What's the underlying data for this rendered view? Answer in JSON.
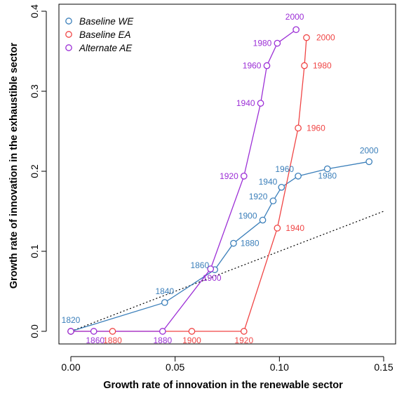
{
  "chart_data": {
    "type": "line",
    "xlabel": "Growth rate of innovation in the renewable sector",
    "ylabel": "Growth rate of innovation in the exhaustible sector",
    "xlim": [
      0,
      0.15
    ],
    "ylim": [
      0,
      0.4
    ],
    "x_ticks": [
      0,
      0.05,
      0.1,
      0.15
    ],
    "x_tick_labels": [
      "0.00",
      "0.05",
      "0.10",
      "0.15"
    ],
    "y_ticks": [
      0,
      0.1,
      0.2,
      0.3,
      0.4
    ],
    "y_tick_labels": [
      "0.0",
      "0.1",
      "0.2",
      "0.3",
      "0.4"
    ],
    "grid": false,
    "legend_position": "top-left",
    "reference_line": {
      "style": "dotted",
      "color": "#000000",
      "x": [
        0,
        0.15
      ],
      "y": [
        0,
        0.15
      ]
    },
    "series": [
      {
        "name": "Baseline WE",
        "color": "#3b7fba",
        "points": [
          {
            "x": 0.0,
            "y": 0.0,
            "label": "1820"
          },
          {
            "x": 0.045,
            "y": 0.036,
            "label": "1840"
          },
          {
            "x": 0.069,
            "y": 0.077,
            "label": "1860"
          },
          {
            "x": 0.078,
            "y": 0.11,
            "label": "1880"
          },
          {
            "x": 0.092,
            "y": 0.139,
            "label": "1900"
          },
          {
            "x": 0.097,
            "y": 0.163,
            "label": "1920"
          },
          {
            "x": 0.101,
            "y": 0.18,
            "label": "1940"
          },
          {
            "x": 0.109,
            "y": 0.194,
            "label": "1960"
          },
          {
            "x": 0.123,
            "y": 0.203,
            "label": "1980"
          },
          {
            "x": 0.143,
            "y": 0.212,
            "label": "2000"
          }
        ]
      },
      {
        "name": "Baseline EA",
        "color": "#f04545",
        "points": [
          {
            "x": 0.0,
            "y": 0.0,
            "label": ""
          },
          {
            "x": 0.02,
            "y": 0.0,
            "label": "1880"
          },
          {
            "x": 0.058,
            "y": 0.0,
            "label": "1900"
          },
          {
            "x": 0.083,
            "y": 0.0,
            "label": "1920"
          },
          {
            "x": 0.099,
            "y": 0.129,
            "label": "1940"
          },
          {
            "x": 0.109,
            "y": 0.254,
            "label": "1960"
          },
          {
            "x": 0.112,
            "y": 0.332,
            "label": "1980"
          },
          {
            "x": 0.113,
            "y": 0.367,
            "label": "2000"
          }
        ]
      },
      {
        "name": "Alternate AE",
        "color": "#9c2fd6",
        "points": [
          {
            "x": 0.0,
            "y": 0.0,
            "label": ""
          },
          {
            "x": 0.011,
            "y": 0.0,
            "label": "1860"
          },
          {
            "x": 0.044,
            "y": 0.0,
            "label": "1880"
          },
          {
            "x": 0.067,
            "y": 0.078,
            "label": "1900"
          },
          {
            "x": 0.083,
            "y": 0.194,
            "label": "1920"
          },
          {
            "x": 0.091,
            "y": 0.285,
            "label": "1940"
          },
          {
            "x": 0.094,
            "y": 0.332,
            "label": "1960"
          },
          {
            "x": 0.099,
            "y": 0.36,
            "label": "1980"
          },
          {
            "x": 0.108,
            "y": 0.377,
            "label": "2000"
          }
        ]
      }
    ]
  }
}
